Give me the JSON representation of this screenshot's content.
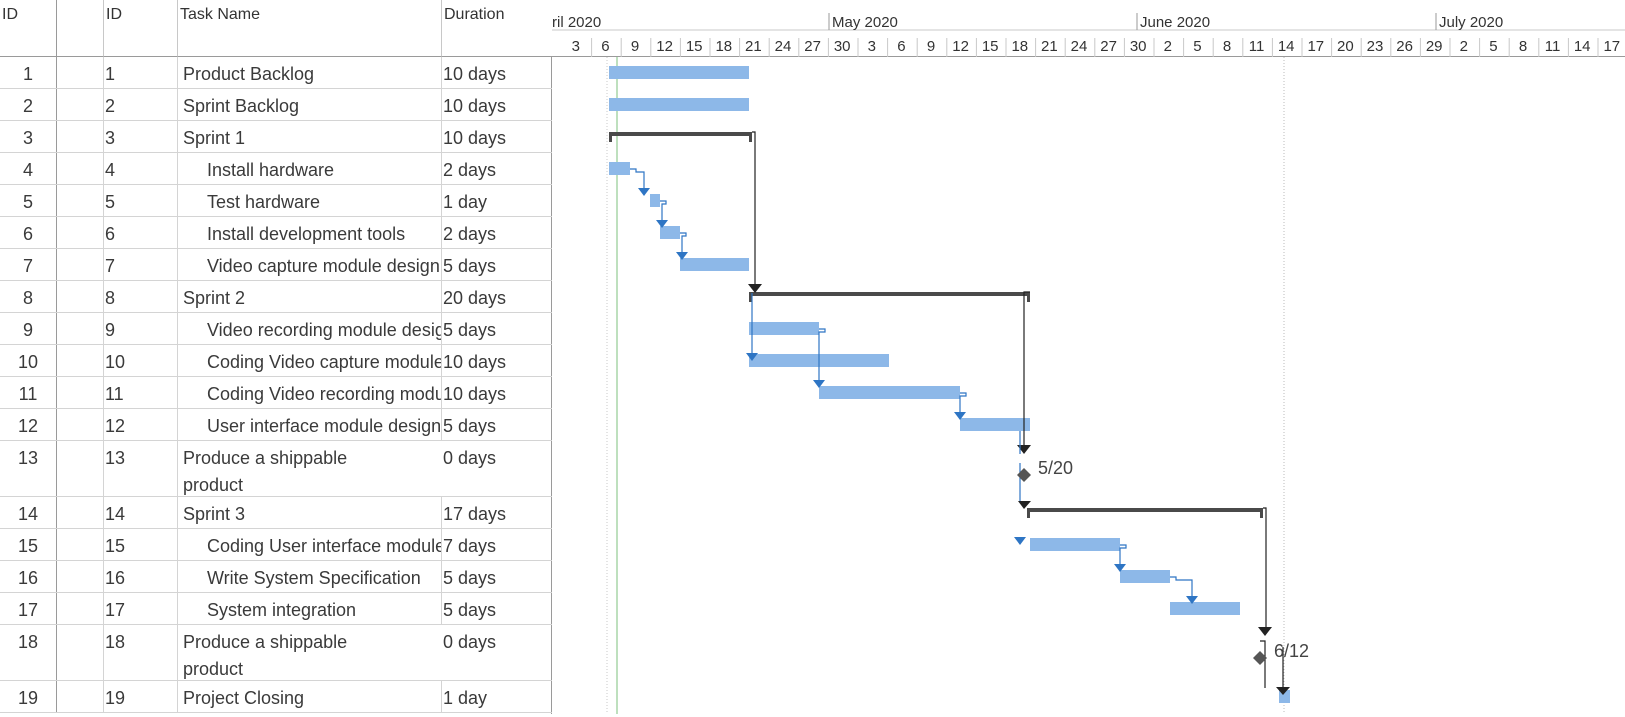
{
  "columns": {
    "row_num": "ID",
    "indicators_icon": "info-icon",
    "id": "ID",
    "task_name": "Task Name",
    "duration": "Duration"
  },
  "timescale": {
    "months": [
      "ril 2020",
      "May 2020",
      "June 2020",
      "July 2020"
    ],
    "days": [
      "3",
      "6",
      "9",
      "12",
      "15",
      "18",
      "21",
      "24",
      "27",
      "30",
      "3",
      "6",
      "9",
      "12",
      "15",
      "18",
      "21",
      "24",
      "27",
      "30",
      "2",
      "5",
      "8",
      "11",
      "14",
      "17",
      "20",
      "23",
      "26",
      "29",
      "2",
      "5",
      "8",
      "11",
      "14",
      "17"
    ]
  },
  "tasks": [
    {
      "row": "1",
      "id": "1",
      "name": "Product Backlog",
      "duration": "10 days",
      "level": 0
    },
    {
      "row": "2",
      "id": "2",
      "name": "Sprint Backlog",
      "duration": "10 days",
      "level": 0
    },
    {
      "row": "3",
      "id": "3",
      "name": "Sprint 1",
      "duration": "10 days",
      "level": 0
    },
    {
      "row": "4",
      "id": "4",
      "name": "Install hardware",
      "duration": "2 days",
      "level": 1
    },
    {
      "row": "5",
      "id": "5",
      "name": "Test hardware",
      "duration": "1 day",
      "level": 1
    },
    {
      "row": "6",
      "id": "6",
      "name": "Install development tools",
      "duration": "2 days",
      "level": 1
    },
    {
      "row": "7",
      "id": "7",
      "name": "Video capture module design",
      "duration": "5 days",
      "level": 1
    },
    {
      "row": "8",
      "id": "8",
      "name": "Sprint 2",
      "duration": "20 days",
      "level": 0
    },
    {
      "row": "9",
      "id": "9",
      "name": "Video recording module design",
      "duration": "5 days",
      "level": 1
    },
    {
      "row": "10",
      "id": "10",
      "name": "Coding Video capture module",
      "duration": "10 days",
      "level": 1
    },
    {
      "row": "11",
      "id": "11",
      "name": "Coding Video recording module",
      "duration": "10 days",
      "level": 1
    },
    {
      "row": "12",
      "id": "12",
      "name": "User interface module design",
      "duration": "5 days",
      "level": 1
    },
    {
      "row": "13",
      "id": "13",
      "name": "Produce a shippable product",
      "duration": "0 days",
      "level": 0
    },
    {
      "row": "14",
      "id": "14",
      "name": "Sprint 3",
      "duration": "17 days",
      "level": 0
    },
    {
      "row": "15",
      "id": "15",
      "name": "Coding User interface module",
      "duration": "7 days",
      "level": 1
    },
    {
      "row": "16",
      "id": "16",
      "name": "Write System Specification",
      "duration": "5 days",
      "level": 1
    },
    {
      "row": "17",
      "id": "17",
      "name": "System integration",
      "duration": "5 days",
      "level": 1
    },
    {
      "row": "18",
      "id": "18",
      "name": "Produce a shippable product",
      "duration": "0 days",
      "level": 0
    },
    {
      "row": "19",
      "id": "19",
      "name": "Project Closing",
      "duration": "1 day",
      "level": 0
    }
  ],
  "milestone_labels": {
    "m13": "5/20",
    "m18": "6/12"
  },
  "colors": {
    "task_bar": "#8db8e8",
    "summary_bar": "#4a4a4a",
    "link": "#2e75c4",
    "milestone": "#555555",
    "status_line": "#7dc27d"
  }
}
